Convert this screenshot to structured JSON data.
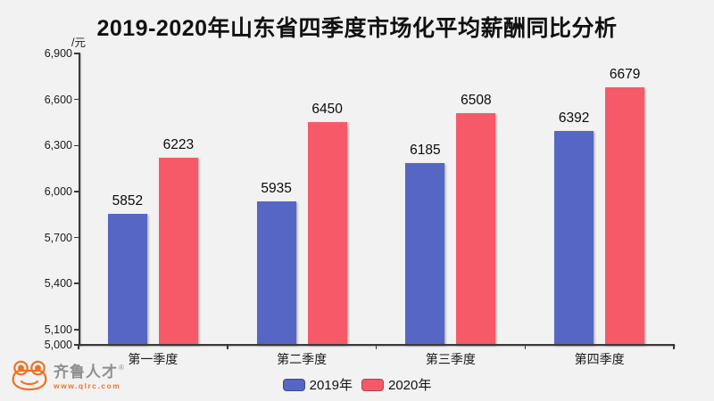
{
  "title": "2019-2020年山东省四季度市场化平均薪酬同比分析",
  "chart_data": {
    "type": "bar",
    "title": "2019-2020年山东省四季度市场化平均薪酬同比分析",
    "unit_label": "/元",
    "categories": [
      "第一季度",
      "第二季度",
      "第三季度",
      "第四季度"
    ],
    "series": [
      {
        "name": "2019年",
        "color": "#5666c4",
        "values": [
          5852,
          5935,
          6185,
          6392
        ]
      },
      {
        "name": "2020年",
        "color": "#f65a68",
        "values": [
          6223,
          6450,
          6508,
          6679
        ]
      }
    ],
    "ylim": [
      5000,
      6900
    ],
    "y_ticks": [
      5000,
      5100,
      5400,
      5700,
      6000,
      6300,
      6600,
      6900
    ],
    "grid": false,
    "legend_position": "bottom",
    "background_color": "#f2f2f2"
  },
  "logo": {
    "brand": "齐鲁人才",
    "registered": "®",
    "url": "www.qlrc.com",
    "brand_color": "#8f8f8f",
    "accent_color": "#ee7125"
  }
}
